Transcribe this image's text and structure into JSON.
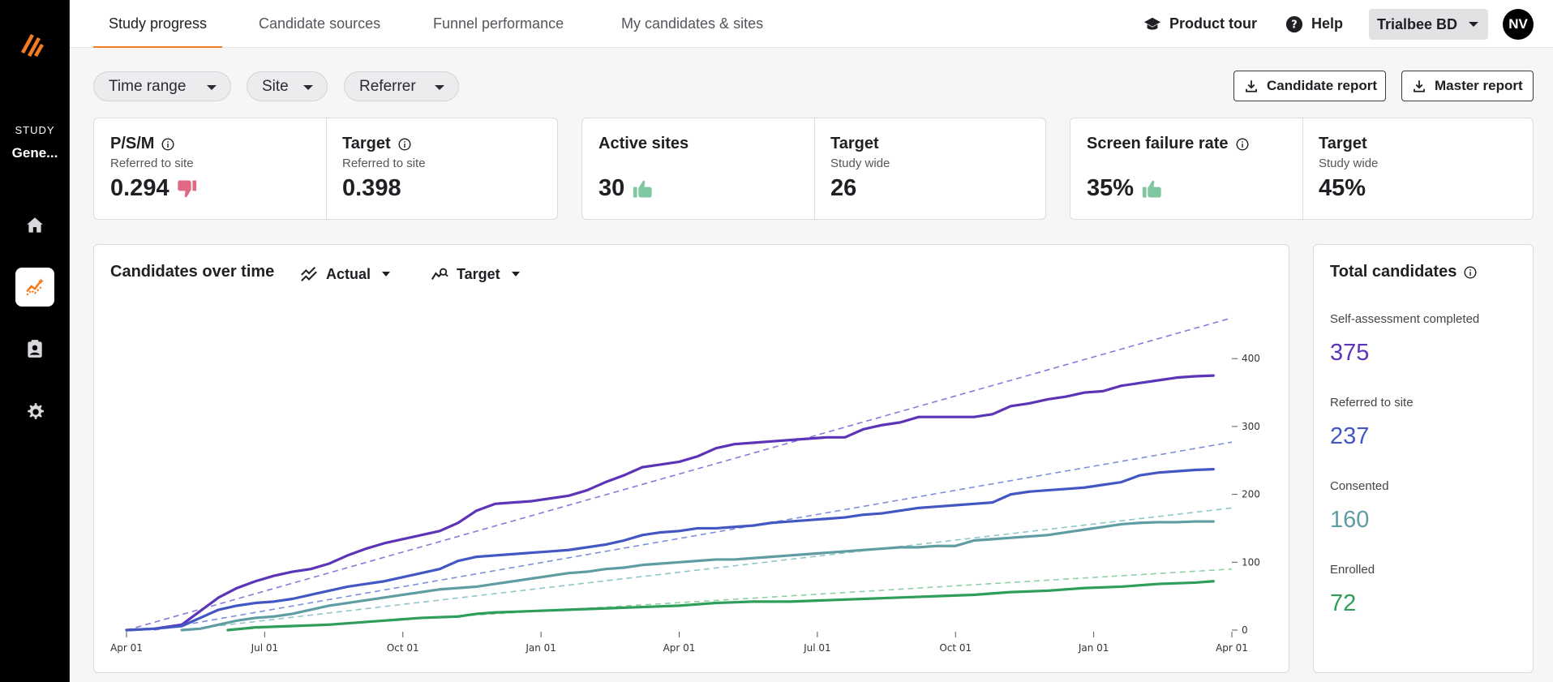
{
  "sidebar": {
    "study_label": "STUDY",
    "study_name": "Gene...",
    "items": [
      {
        "icon": "home-icon"
      },
      {
        "icon": "analytics-icon",
        "active": true
      },
      {
        "icon": "contact-card-icon"
      },
      {
        "icon": "gear-icon"
      }
    ]
  },
  "header": {
    "tabs": [
      "Study progress",
      "Candidate sources",
      "Funnel performance",
      "My candidates & sites"
    ],
    "active_tab": "Study progress",
    "product_tour": "Product tour",
    "help": "Help",
    "org": "Trialbee BD",
    "avatar_initials": "NV"
  },
  "filters": {
    "time_range": "Time range",
    "site": "Site",
    "referrer": "Referrer"
  },
  "reports": {
    "candidate": "Candidate report",
    "master": "Master report"
  },
  "kpis": {
    "psm": {
      "title": "P/S/M",
      "sub": "Referred to site",
      "value": "0.294",
      "trend": "thumbs-down"
    },
    "psm_target": {
      "title": "Target",
      "sub": "Referred to site",
      "value": "0.398"
    },
    "active_sites": {
      "title": "Active sites",
      "value": "30",
      "trend": "thumbs-up"
    },
    "active_target": {
      "title": "Target",
      "sub": "Study wide",
      "value": "26"
    },
    "sfr": {
      "title": "Screen failure rate",
      "value": "35%",
      "trend": "thumbs-up"
    },
    "sfr_target": {
      "title": "Target",
      "sub": "Study wide",
      "value": "45%"
    }
  },
  "chart": {
    "title": "Candidates over time",
    "actual_label": "Actual",
    "target_label": "Target"
  },
  "totals": {
    "title": "Total candidates",
    "items": [
      {
        "label": "Self-assessment completed",
        "value": "375",
        "color": "#5b34b8"
      },
      {
        "label": "Referred to site",
        "value": "237",
        "color": "#4257c4"
      },
      {
        "label": "Consented",
        "value": "160",
        "color": "#5f9da3"
      },
      {
        "label": "Enrolled",
        "value": "72",
        "color": "#2e9e5a"
      }
    ]
  },
  "chart_data": {
    "type": "line",
    "title": "Candidates over time",
    "x_ticks": [
      "Apr 01",
      "Jul 01",
      "Oct 01",
      "Jan 01",
      "Apr 01",
      "Jul 01",
      "Oct 01",
      "Jan 01",
      "Apr 01"
    ],
    "y_ticks": [
      0,
      100,
      200,
      300,
      400
    ],
    "ylim": [
      0,
      460
    ],
    "x_unit": "months since first Apr 01",
    "series": [
      {
        "name": "Self-assessment completed",
        "kind": "actual",
        "color": "#5b34b8",
        "x": [
          0,
          0.6,
          1.2,
          1.6,
          2,
          2.4,
          2.8,
          3.2,
          3.6,
          4,
          4.4,
          4.8,
          5.2,
          5.6,
          6,
          6.4,
          6.8,
          7.2,
          7.6,
          8,
          8.4,
          8.8,
          9.2,
          9.6,
          10,
          10.4,
          10.8,
          11.2,
          11.6,
          12,
          12.4,
          12.8,
          13.2,
          13.6,
          14,
          14.4,
          14.8,
          15.2,
          15.6,
          16,
          16.4,
          16.8,
          17.2,
          17.6,
          18,
          18.4,
          18.8,
          19.2,
          19.6,
          20,
          20.4,
          20.8,
          21.2,
          21.6,
          22,
          22.4,
          22.8,
          23.2,
          23.6
        ],
        "y": [
          0,
          2,
          8,
          28,
          48,
          62,
          72,
          80,
          86,
          90,
          98,
          110,
          120,
          128,
          134,
          140,
          146,
          158,
          176,
          186,
          188,
          190,
          194,
          198,
          206,
          218,
          228,
          240,
          244,
          248,
          256,
          268,
          274,
          276,
          278,
          280,
          282,
          284,
          284,
          296,
          302,
          306,
          314,
          314,
          314,
          314,
          318,
          330,
          334,
          340,
          344,
          350,
          352,
          360,
          364,
          368,
          372,
          374,
          375
        ]
      },
      {
        "name": "Referred to site",
        "kind": "actual",
        "color": "#4257c4",
        "x": [
          0,
          0.6,
          1.2,
          1.6,
          2,
          2.4,
          2.8,
          3.2,
          3.6,
          4,
          4.4,
          4.8,
          5.2,
          5.6,
          6,
          6.4,
          6.8,
          7.2,
          7.6,
          8,
          8.4,
          8.8,
          9.2,
          9.6,
          10,
          10.4,
          10.8,
          11.2,
          11.6,
          12,
          12.4,
          12.8,
          13.2,
          13.6,
          14,
          14.4,
          14.8,
          15.2,
          15.6,
          16,
          16.4,
          16.8,
          17.2,
          17.6,
          18,
          18.4,
          18.8,
          19.2,
          19.6,
          20,
          20.4,
          20.8,
          21.2,
          21.6,
          22,
          22.4,
          22.8,
          23.2,
          23.6
        ],
        "y": [
          0,
          2,
          6,
          18,
          30,
          36,
          40,
          42,
          46,
          52,
          58,
          64,
          68,
          72,
          78,
          84,
          90,
          102,
          108,
          110,
          112,
          114,
          116,
          118,
          122,
          126,
          132,
          140,
          144,
          146,
          150,
          150,
          152,
          154,
          158,
          160,
          162,
          164,
          166,
          170,
          172,
          176,
          180,
          182,
          184,
          186,
          188,
          200,
          204,
          206,
          208,
          210,
          214,
          218,
          228,
          232,
          234,
          236,
          237
        ]
      },
      {
        "name": "Consented",
        "kind": "actual",
        "color": "#5f9da3",
        "x": [
          1.2,
          1.6,
          2,
          2.4,
          2.8,
          3.2,
          3.6,
          4,
          4.4,
          4.8,
          5.2,
          5.6,
          6,
          6.4,
          6.8,
          7.2,
          7.6,
          8,
          8.4,
          8.8,
          9.2,
          9.6,
          10,
          10.4,
          10.8,
          11.2,
          11.6,
          12,
          12.4,
          12.8,
          13.2,
          13.6,
          14,
          14.4,
          14.8,
          15.2,
          15.6,
          16,
          16.4,
          16.8,
          17.2,
          17.6,
          18,
          18.4,
          18.8,
          19.2,
          19.6,
          20,
          20.4,
          20.8,
          21.2,
          21.6,
          22,
          22.4,
          22.8,
          23.2,
          23.6
        ],
        "y": [
          0,
          2,
          8,
          14,
          18,
          20,
          24,
          30,
          36,
          40,
          44,
          48,
          52,
          56,
          60,
          62,
          64,
          68,
          72,
          76,
          80,
          84,
          86,
          90,
          92,
          96,
          98,
          100,
          102,
          104,
          104,
          106,
          108,
          110,
          112,
          114,
          116,
          118,
          120,
          122,
          122,
          124,
          124,
          132,
          134,
          136,
          138,
          140,
          144,
          148,
          152,
          156,
          158,
          159,
          159,
          160,
          160
        ]
      },
      {
        "name": "Enrolled",
        "kind": "actual",
        "color": "#2e9e5a",
        "x": [
          2.2,
          2.8,
          3.6,
          4.4,
          5.2,
          6,
          6.4,
          7.2,
          7.6,
          8,
          8.8,
          9.6,
          10.4,
          11.2,
          12,
          12.4,
          12.8,
          13.6,
          14.4,
          15.2,
          16,
          16.8,
          17.6,
          18.4,
          19.2,
          20,
          20.8,
          21.6,
          22.4,
          23.2,
          23.6
        ],
        "y": [
          0,
          4,
          6,
          8,
          12,
          16,
          18,
          20,
          24,
          26,
          28,
          30,
          32,
          34,
          36,
          38,
          40,
          42,
          42,
          44,
          46,
          48,
          50,
          52,
          56,
          58,
          62,
          64,
          68,
          70,
          72
        ]
      },
      {
        "name": "Self-assessment target",
        "kind": "target",
        "color": "#8a7ad8",
        "x": [
          0,
          24
        ],
        "y": [
          0,
          460
        ]
      },
      {
        "name": "Referred target",
        "kind": "target",
        "color": "#7e8fd8",
        "x": [
          0.6,
          24
        ],
        "y": [
          0,
          277
        ]
      },
      {
        "name": "Consented target",
        "kind": "target",
        "color": "#8fc6c8",
        "x": [
          1.2,
          24
        ],
        "y": [
          0,
          180
        ]
      },
      {
        "name": "Enrolled target",
        "kind": "target",
        "color": "#8fd0a6",
        "x": [
          2.2,
          24
        ],
        "y": [
          0,
          90
        ]
      }
    ]
  }
}
